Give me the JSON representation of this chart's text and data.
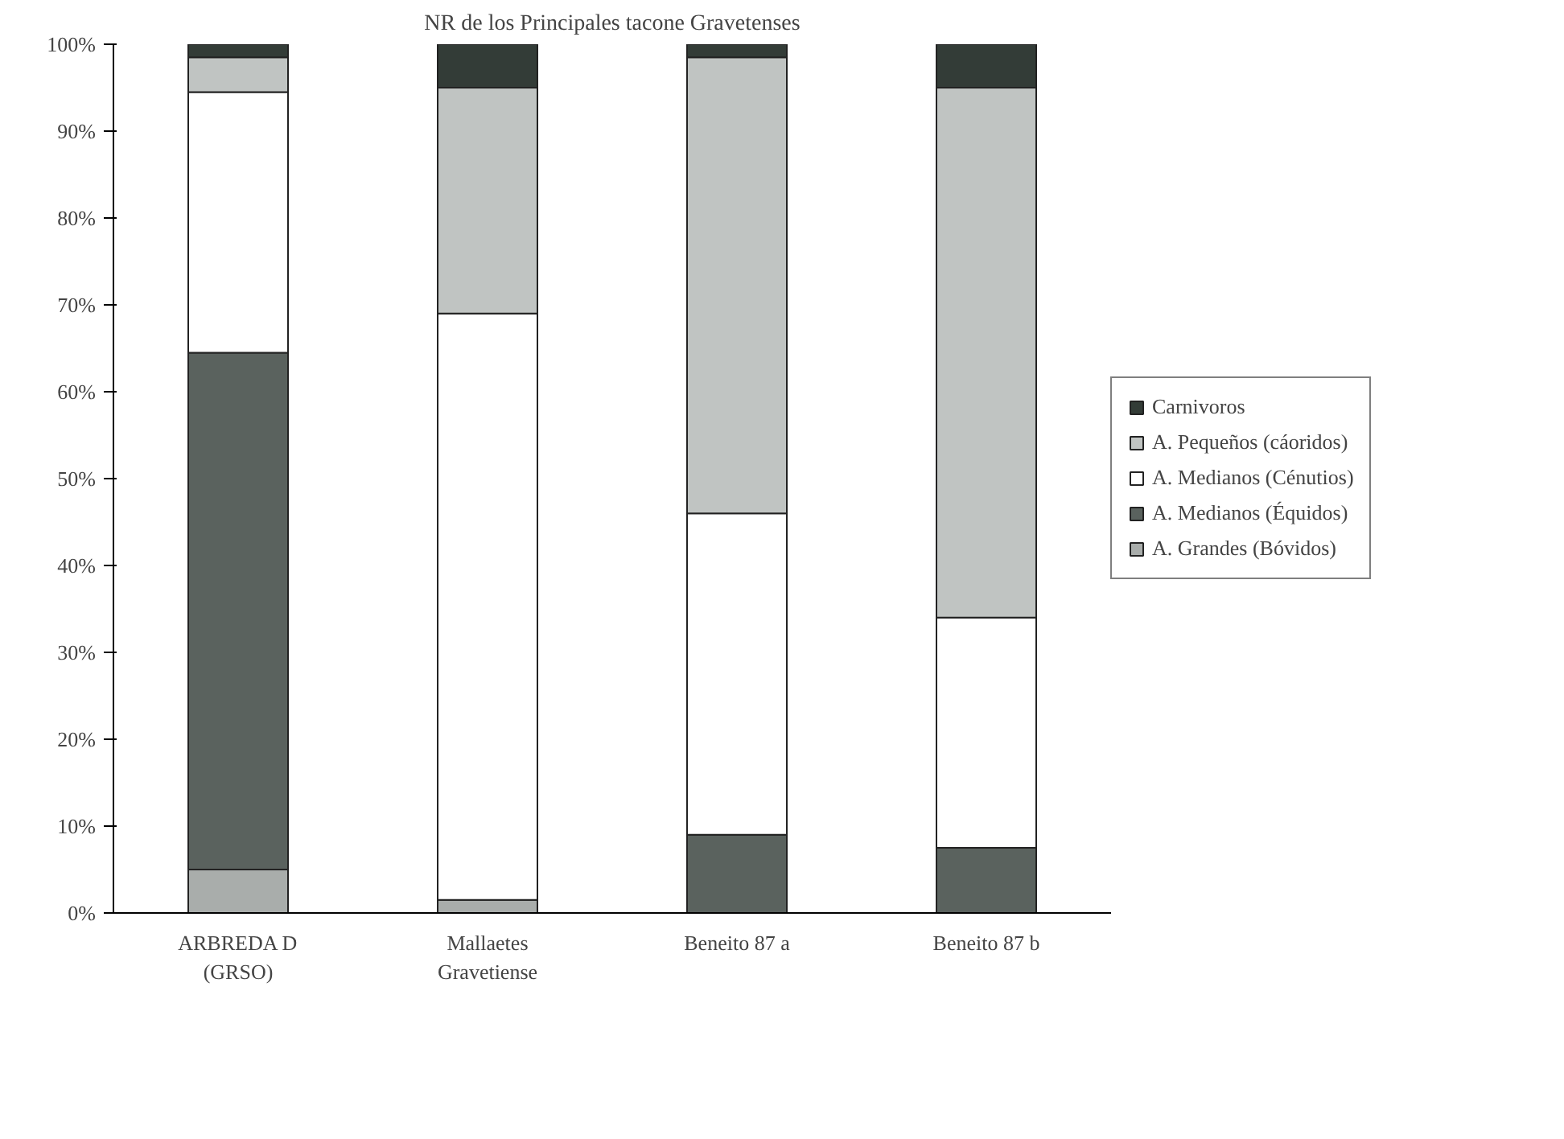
{
  "chart_data": {
    "type": "bar",
    "title": "NR de los Principales tacone Gravetenses",
    "categories": [
      "ARBREDA D\n(GRSO)",
      "Mallaetes\nGravetiense",
      "Beneito 87 a",
      "Beneito 87 b"
    ],
    "stacked": true,
    "series": [
      {
        "name": "A. Grandes (Bóvidos)",
        "color": "#a9adab",
        "values": [
          5,
          1.5,
          null,
          null
        ]
      },
      {
        "name": "A. Medianos (Équidos)",
        "color": "#5a625e",
        "values": [
          59.5,
          null,
          9,
          7.5
        ]
      },
      {
        "name": "A. Medianos (Cénutios)",
        "color": "#ffffff",
        "values": [
          30,
          67.5,
          37,
          26.5
        ]
      },
      {
        "name": "A. Pequeños (cáoridos)",
        "color": "#c0c4c2",
        "values": [
          4,
          26,
          52.5,
          61
        ]
      },
      {
        "name": "Carnivoros",
        "color": "#333c37",
        "values": [
          1.5,
          5,
          1.5,
          5
        ]
      }
    ],
    "ylim": [
      0,
      100
    ],
    "yticks": [
      {
        "value": 0,
        "label": "0%"
      },
      {
        "value": 10,
        "label": "10%"
      },
      {
        "value": 20,
        "label": "20%"
      },
      {
        "value": 30,
        "label": "30%"
      },
      {
        "value": 40,
        "label": "40%"
      },
      {
        "value": 50,
        "label": "50%"
      },
      {
        "value": 60,
        "label": "60%"
      },
      {
        "value": 70,
        "label": "70%"
      },
      {
        "value": 80,
        "label": "80%"
      },
      {
        "value": 90,
        "label": "90%"
      },
      {
        "value": 100,
        "label": "100%"
      }
    ],
    "legend": "right",
    "grid": false
  }
}
